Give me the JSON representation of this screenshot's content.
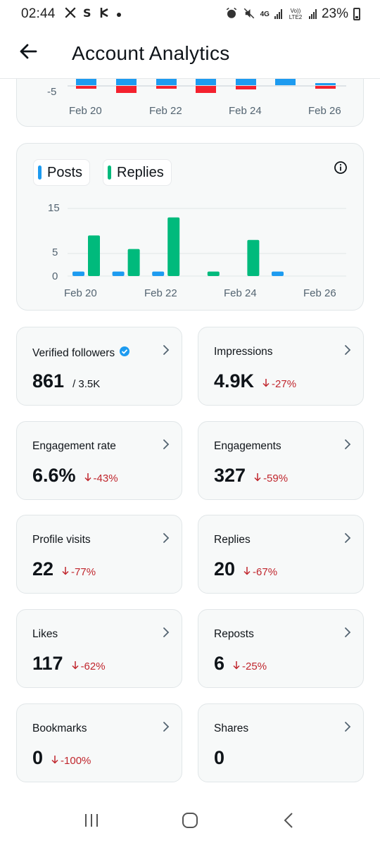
{
  "status_bar": {
    "time": "02:44",
    "left_icons": [
      "x-logo-icon",
      "app-s-icon",
      "app-b-icon",
      "dot-icon"
    ],
    "battery": "23%",
    "network": "4G",
    "volte": "Vo)) LTE2"
  },
  "header": {
    "title": "Account Analytics",
    "back_icon": "arrow-left-icon"
  },
  "chart_top": {
    "chart_data": {
      "type": "bar",
      "y_tick": "-5",
      "x_ticks": [
        "Feb 20",
        "Feb 22",
        "Feb 24",
        "Feb 26"
      ]
    }
  },
  "chart_posts": {
    "legend": {
      "posts": "Posts",
      "replies": "Replies"
    },
    "colors": {
      "posts": "#1d9bf0",
      "replies": "#00ba7c"
    },
    "chart_data": {
      "type": "bar",
      "categories": [
        "Feb 20",
        "Feb 21",
        "Feb 22",
        "Feb 23",
        "Feb 24",
        "Feb 25",
        "Feb 26"
      ],
      "x_ticks": [
        "Feb 20",
        "Feb 22",
        "Feb 24",
        "Feb 26"
      ],
      "y_ticks": [
        "15",
        "5",
        "0"
      ],
      "ylim": [
        0,
        15
      ],
      "series": [
        {
          "name": "Posts",
          "values": [
            1,
            1,
            1,
            0,
            0,
            1,
            0
          ]
        },
        {
          "name": "Replies",
          "values": [
            9,
            6,
            13,
            1,
            8,
            0,
            0
          ]
        }
      ]
    }
  },
  "metrics": [
    {
      "label": "Verified followers",
      "value": "861",
      "extra": "/ 3.5K",
      "verified": true
    },
    {
      "label": "Impressions",
      "value": "4.9K",
      "change": "-27%"
    },
    {
      "label": "Engagement rate",
      "value": "6.6%",
      "change": "-43%"
    },
    {
      "label": "Engagements",
      "value": "327",
      "change": "-59%"
    },
    {
      "label": "Profile visits",
      "value": "22",
      "change": "-77%"
    },
    {
      "label": "Replies",
      "value": "20",
      "change": "-67%"
    },
    {
      "label": "Likes",
      "value": "117",
      "change": "-62%"
    },
    {
      "label": "Reposts",
      "value": "6",
      "change": "-25%"
    },
    {
      "label": "Bookmarks",
      "value": "0",
      "change": "-100%"
    },
    {
      "label": "Shares",
      "value": "0"
    }
  ]
}
